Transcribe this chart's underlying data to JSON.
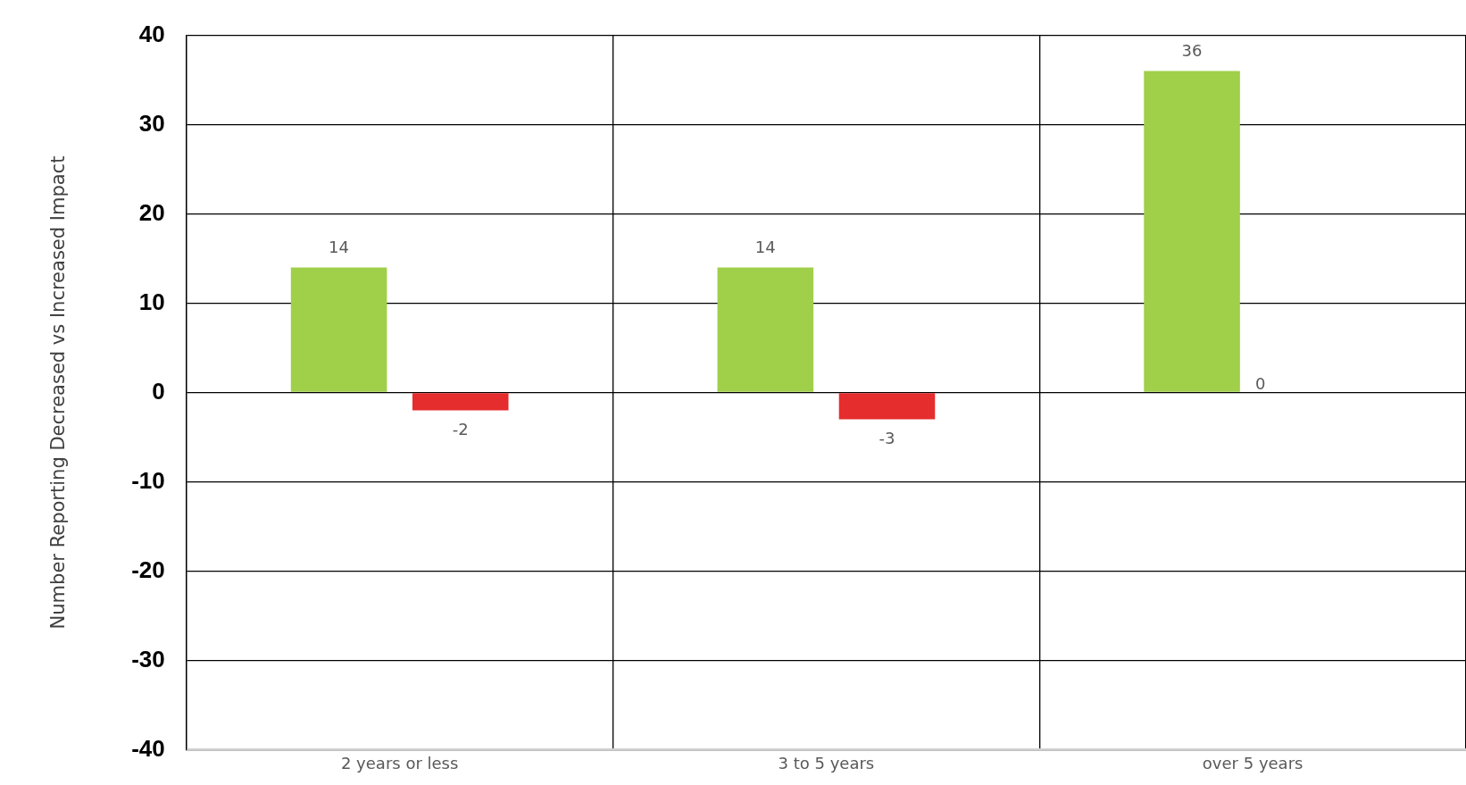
{
  "chart_data": {
    "type": "bar",
    "ylabel": "Number Reporting Decreased vs Increased Impact",
    "categories": [
      "2 years or less",
      "3 to 5 years",
      "over 5 years"
    ],
    "series": [
      {
        "color": "#a0cf4a",
        "values": [
          14,
          14,
          36
        ]
      },
      {
        "color": "#e52d2d",
        "values": [
          -2,
          -3,
          0
        ]
      }
    ],
    "ylim": [
      -40,
      40
    ],
    "yticks": [
      -40,
      -30,
      -20,
      -10,
      0,
      10,
      20,
      30,
      40
    ],
    "grid": true,
    "data_labels": true,
    "legend": false
  }
}
